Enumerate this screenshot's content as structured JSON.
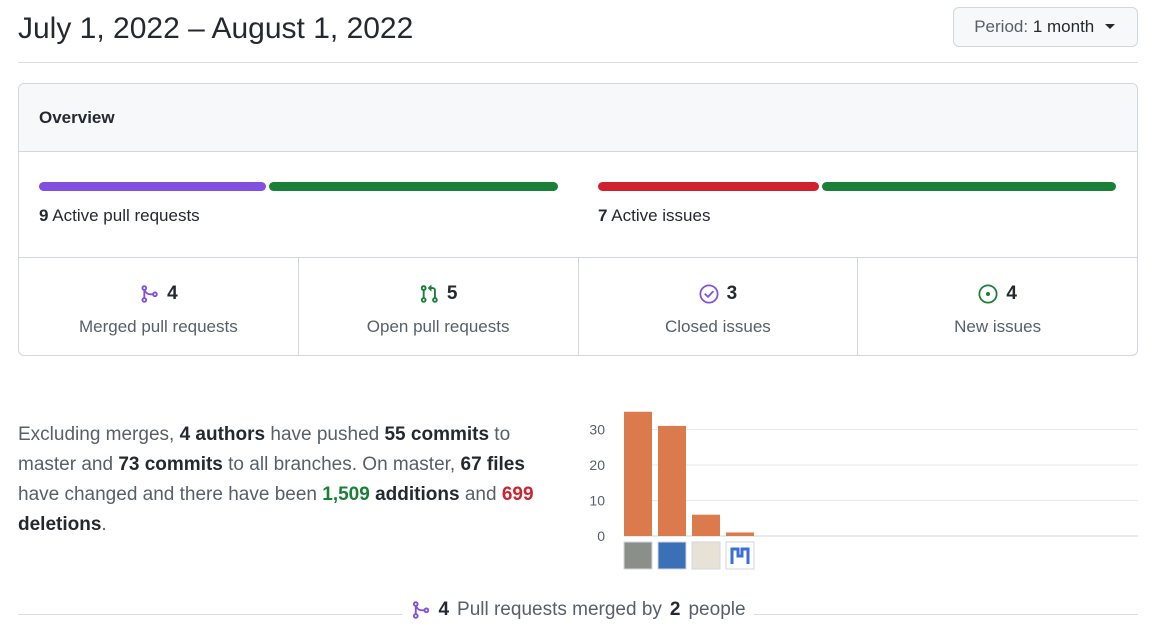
{
  "header": {
    "date_range": "July 1, 2022 – August 1, 2022",
    "period_label": "Period:",
    "period_value": "1 month"
  },
  "overview": {
    "title": "Overview",
    "pull_requests": {
      "count": "9",
      "label": "Active pull requests",
      "merged_fraction": 0.44,
      "colors": [
        "#8250df",
        "#1a7f37"
      ]
    },
    "issues": {
      "count": "7",
      "label": "Active issues",
      "closed_fraction": 0.43,
      "colors": [
        "#cf222e",
        "#1a7f37"
      ]
    },
    "stats": [
      {
        "icon": "merged-pr-icon",
        "count": "4",
        "label": "Merged pull requests",
        "color": "#8250df"
      },
      {
        "icon": "open-pr-icon",
        "count": "5",
        "label": "Open pull requests",
        "color": "#1a7f37"
      },
      {
        "icon": "closed-issue-icon",
        "count": "3",
        "label": "Closed issues",
        "color": "#8250df"
      },
      {
        "icon": "new-issue-icon",
        "count": "4",
        "label": "New issues",
        "color": "#1a7f37"
      }
    ]
  },
  "summary": {
    "t1": "Excluding merges, ",
    "authors": "4 authors",
    "t2": " have pushed ",
    "commits_master": "55 commits",
    "t3": " to master and ",
    "commits_all": "73 commits",
    "t4": " to all branches. On master, ",
    "files": "67 files",
    "t5": " have changed and there have been ",
    "additions_num": "1,509",
    "additions_word": " additions",
    "t6": " and ",
    "deletions_num": "699",
    "deletions_word": " deletions",
    "t7": "."
  },
  "chart_data": {
    "type": "bar",
    "categories": [
      "author-1",
      "author-2",
      "author-3",
      "author-4"
    ],
    "values": [
      35,
      31,
      6,
      1
    ],
    "yticks": [
      0,
      10,
      20,
      30
    ],
    "ylim": [
      0,
      35
    ],
    "bar_color": "#db7b4d",
    "grid": true
  },
  "footer": {
    "count": "4",
    "text1": "Pull requests merged by",
    "people_count": "2",
    "text2": "people"
  }
}
